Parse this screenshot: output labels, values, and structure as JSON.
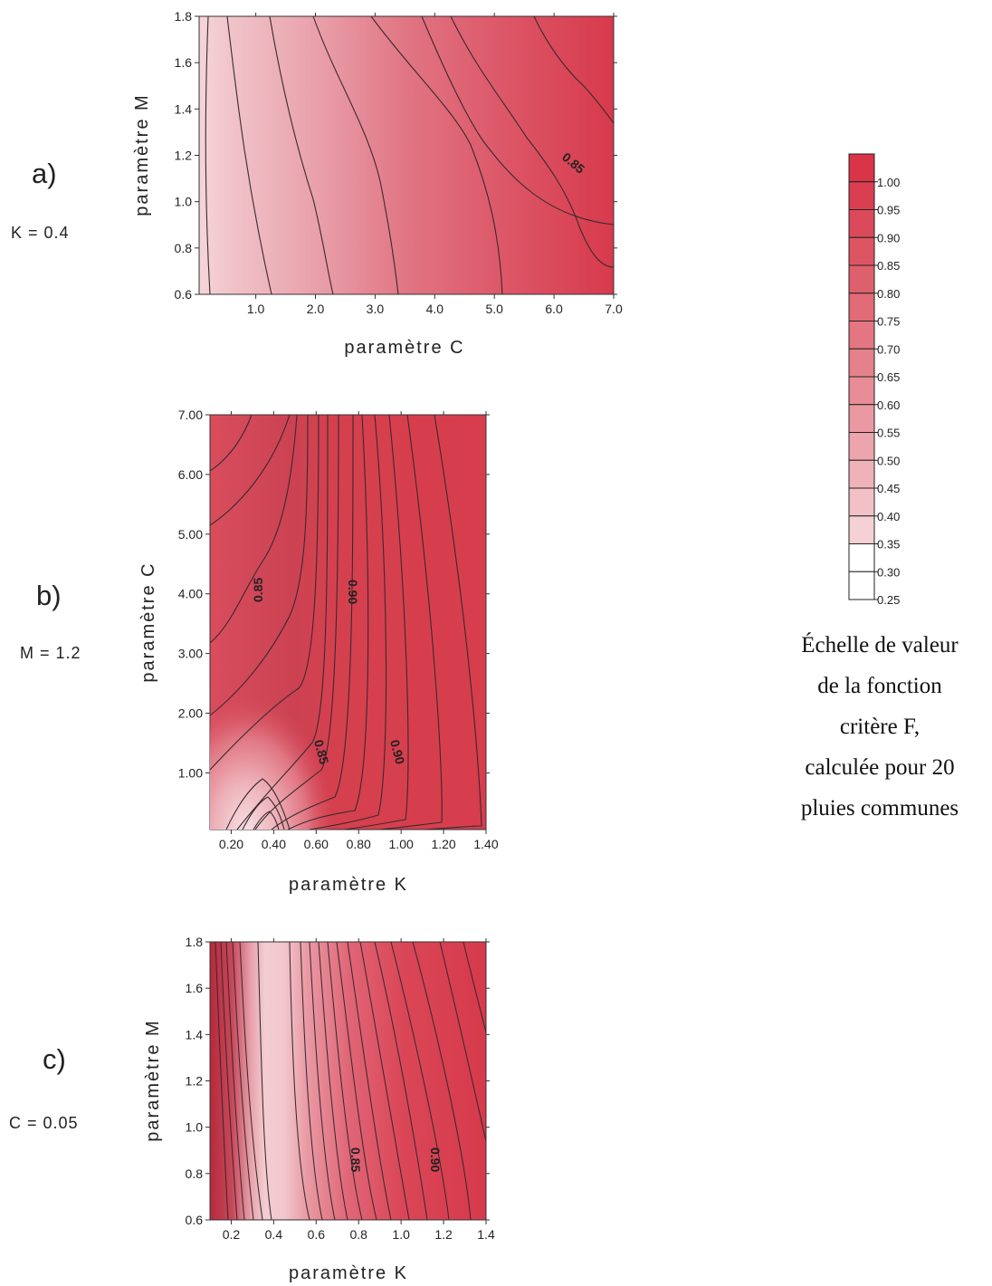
{
  "chart_data": [
    {
      "type": "contour",
      "panel_label": "a)",
      "fixed_parameter": "K = 0.4",
      "xlabel": "paramètre C",
      "ylabel": "paramètre M",
      "xlim": [
        0.05,
        7.0
      ],
      "ylim": [
        0.6,
        1.8
      ],
      "x_ticks": [
        "1.0",
        "2.0",
        "3.0",
        "4.0",
        "5.0",
        "6.0",
        "7.0"
      ],
      "y_ticks": [
        "0.6",
        "0.8",
        "1.0",
        "1.2",
        "1.4",
        "1.6",
        "1.8"
      ],
      "contour_labels": [
        {
          "text": "0.85",
          "x": 6.1,
          "y": 1.19
        }
      ]
    },
    {
      "type": "contour",
      "panel_label": "b)",
      "fixed_parameter": "M = 1.2",
      "xlabel": "paramètre K",
      "ylabel": "paramètre C",
      "xlim": [
        0.1,
        1.4
      ],
      "ylim": [
        0.05,
        7.0
      ],
      "x_ticks": [
        "0.20",
        "0.40",
        "0.60",
        "0.80",
        "1.00",
        "1.20",
        "1.40"
      ],
      "y_ticks": [
        "1.00",
        "2.00",
        "3.00",
        "4.00",
        "5.00",
        "6.00",
        "7.00"
      ],
      "contour_labels": [
        {
          "text": "0.85",
          "x": 0.37,
          "y": 4.05
        },
        {
          "text": "0.90",
          "x": 0.72,
          "y": 4.05
        },
        {
          "text": "0.85",
          "x": 0.57,
          "y": 1.05
        },
        {
          "text": "0.90",
          "x": 0.95,
          "y": 1.05
        }
      ]
    },
    {
      "type": "contour",
      "panel_label": "c)",
      "fixed_parameter": "C = 0.05",
      "xlabel": "paramètre K",
      "ylabel": "paramètre M",
      "xlim": [
        0.1,
        1.4
      ],
      "ylim": [
        0.6,
        1.8
      ],
      "x_ticks": [
        "0.2",
        "0.4",
        "0.6",
        "0.8",
        "1.0",
        "1.2",
        "1.4"
      ],
      "y_ticks": [
        "0.6",
        "0.8",
        "1.0",
        "1.2",
        "1.4",
        "1.6",
        "1.8"
      ],
      "contour_labels": [
        {
          "text": "0.85",
          "x": 0.73,
          "y": 0.82
        },
        {
          "text": "0.90",
          "x": 1.12,
          "y": 0.82
        }
      ]
    }
  ],
  "legend": {
    "levels": [
      "1.00",
      "0.95",
      "0.90",
      "0.85",
      "0.80",
      "0.75",
      "0.70",
      "0.65",
      "0.60",
      "0.55",
      "0.50",
      "0.45",
      "0.40",
      "0.35",
      "0.30",
      "0.25"
    ],
    "colors": [
      "#d93448",
      "#d93f51",
      "#db4a5a",
      "#dd5563",
      "#df606d",
      "#e16b77",
      "#e37682",
      "#e5818c",
      "#e88c97",
      "#ea98a2",
      "#eca4ad",
      "#efb2b9",
      "#f2c1c7",
      "#f5d0d5",
      "#ffffff",
      "#ffffff"
    ],
    "caption_lines": [
      "Échelle de valeur",
      "de la fonction",
      "critère F,",
      "calculée pour 20",
      "pluies communes"
    ]
  }
}
